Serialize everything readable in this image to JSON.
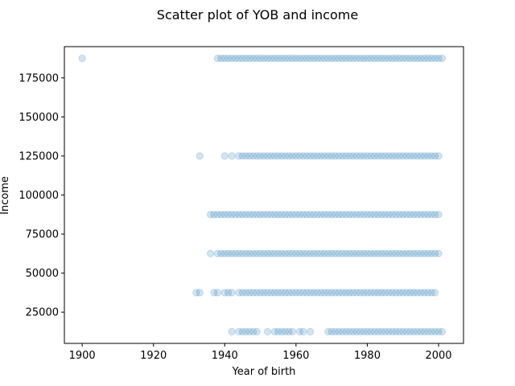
{
  "chart_data": {
    "type": "scatter",
    "title": "Scatter plot of YOB and income",
    "xlabel": "Year of birth",
    "ylabel": "Income",
    "xlim": [
      1895,
      2007
    ],
    "ylim": [
      5000,
      195000
    ],
    "xticks": [
      1900,
      1920,
      1940,
      1960,
      1980,
      2000
    ],
    "yticks": [
      25000,
      50000,
      75000,
      100000,
      125000,
      150000,
      175000
    ],
    "xtick_labels": [
      "1900",
      "1920",
      "1940",
      "1960",
      "1980",
      "2000"
    ],
    "ytick_labels": [
      "25000",
      "50000",
      "75000",
      "100000",
      "125000",
      "150000",
      "175000"
    ],
    "grid": false,
    "color": "#1f77b4",
    "alpha": 0.2,
    "series": [
      {
        "x": [
          1900,
          1938,
          1939,
          1940,
          1941,
          1942,
          1943,
          1944,
          1945,
          1946,
          1947,
          1948,
          1949,
          1950,
          1951,
          1952,
          1953,
          1954,
          1955,
          1956,
          1957,
          1958,
          1959,
          1960,
          1961,
          1962,
          1963,
          1964,
          1965,
          1966,
          1967,
          1968,
          1969,
          1970,
          1971,
          1972,
          1973,
          1974,
          1975,
          1976,
          1977,
          1978,
          1979,
          1980,
          1981,
          1982,
          1983,
          1984,
          1985,
          1986,
          1987,
          1988,
          1989,
          1990,
          1991,
          1992,
          1993,
          1994,
          1995,
          1996,
          1997,
          1998,
          1999,
          2000,
          2001
        ],
        "y": [
          187500,
          187500,
          187500,
          187500,
          187500,
          187500,
          187500,
          187500,
          187500,
          187500,
          187500,
          187500,
          187500,
          187500,
          187500,
          187500,
          187500,
          187500,
          187500,
          187500,
          187500,
          187500,
          187500,
          187500,
          187500,
          187500,
          187500,
          187500,
          187500,
          187500,
          187500,
          187500,
          187500,
          187500,
          187500,
          187500,
          187500,
          187500,
          187500,
          187500,
          187500,
          187500,
          187500,
          187500,
          187500,
          187500,
          187500,
          187500,
          187500,
          187500,
          187500,
          187500,
          187500,
          187500,
          187500,
          187500,
          187500,
          187500,
          187500,
          187500,
          187500,
          187500,
          187500,
          187500,
          187500
        ]
      },
      {
        "x": [
          1933,
          1940,
          1942,
          1944,
          1945,
          1946,
          1947,
          1948,
          1949,
          1950,
          1951,
          1952,
          1953,
          1954,
          1955,
          1956,
          1957,
          1958,
          1959,
          1960,
          1961,
          1962,
          1963,
          1964,
          1965,
          1966,
          1967,
          1968,
          1969,
          1970,
          1971,
          1972,
          1973,
          1974,
          1975,
          1976,
          1977,
          1978,
          1979,
          1980,
          1981,
          1982,
          1983,
          1984,
          1985,
          1986,
          1987,
          1988,
          1989,
          1990,
          1991,
          1992,
          1993,
          1994,
          1995,
          1996,
          1997,
          1998,
          1999,
          2000
        ],
        "y": [
          125000,
          125000,
          125000,
          125000,
          125000,
          125000,
          125000,
          125000,
          125000,
          125000,
          125000,
          125000,
          125000,
          125000,
          125000,
          125000,
          125000,
          125000,
          125000,
          125000,
          125000,
          125000,
          125000,
          125000,
          125000,
          125000,
          125000,
          125000,
          125000,
          125000,
          125000,
          125000,
          125000,
          125000,
          125000,
          125000,
          125000,
          125000,
          125000,
          125000,
          125000,
          125000,
          125000,
          125000,
          125000,
          125000,
          125000,
          125000,
          125000,
          125000,
          125000,
          125000,
          125000,
          125000,
          125000,
          125000,
          125000,
          125000,
          125000,
          125000
        ]
      },
      {
        "x": [
          1936,
          1937,
          1938,
          1939,
          1940,
          1941,
          1942,
          1943,
          1944,
          1945,
          1946,
          1947,
          1948,
          1949,
          1950,
          1951,
          1952,
          1953,
          1954,
          1955,
          1956,
          1957,
          1958,
          1959,
          1960,
          1961,
          1962,
          1963,
          1964,
          1965,
          1966,
          1967,
          1968,
          1969,
          1970,
          1971,
          1972,
          1973,
          1974,
          1975,
          1976,
          1977,
          1978,
          1979,
          1980,
          1981,
          1982,
          1983,
          1984,
          1985,
          1986,
          1987,
          1988,
          1989,
          1990,
          1991,
          1992,
          1993,
          1994,
          1995,
          1996,
          1997,
          1998,
          1999,
          2000
        ],
        "y": [
          87500,
          87500,
          87500,
          87500,
          87500,
          87500,
          87500,
          87500,
          87500,
          87500,
          87500,
          87500,
          87500,
          87500,
          87500,
          87500,
          87500,
          87500,
          87500,
          87500,
          87500,
          87500,
          87500,
          87500,
          87500,
          87500,
          87500,
          87500,
          87500,
          87500,
          87500,
          87500,
          87500,
          87500,
          87500,
          87500,
          87500,
          87500,
          87500,
          87500,
          87500,
          87500,
          87500,
          87500,
          87500,
          87500,
          87500,
          87500,
          87500,
          87500,
          87500,
          87500,
          87500,
          87500,
          87500,
          87500,
          87500,
          87500,
          87500,
          87500,
          87500,
          87500,
          87500,
          87500,
          87500
        ]
      },
      {
        "x": [
          1936,
          1938,
          1939,
          1940,
          1941,
          1942,
          1943,
          1944,
          1945,
          1946,
          1947,
          1948,
          1949,
          1950,
          1951,
          1952,
          1953,
          1954,
          1955,
          1956,
          1957,
          1958,
          1959,
          1960,
          1961,
          1962,
          1963,
          1964,
          1965,
          1966,
          1967,
          1968,
          1969,
          1970,
          1971,
          1972,
          1973,
          1974,
          1975,
          1976,
          1977,
          1978,
          1979,
          1980,
          1981,
          1982,
          1983,
          1984,
          1985,
          1986,
          1987,
          1988,
          1989,
          1990,
          1991,
          1992,
          1993,
          1994,
          1995,
          1996,
          1997,
          1998,
          1999,
          2000
        ],
        "y": [
          62500,
          62500,
          62500,
          62500,
          62500,
          62500,
          62500,
          62500,
          62500,
          62500,
          62500,
          62500,
          62500,
          62500,
          62500,
          62500,
          62500,
          62500,
          62500,
          62500,
          62500,
          62500,
          62500,
          62500,
          62500,
          62500,
          62500,
          62500,
          62500,
          62500,
          62500,
          62500,
          62500,
          62500,
          62500,
          62500,
          62500,
          62500,
          62500,
          62500,
          62500,
          62500,
          62500,
          62500,
          62500,
          62500,
          62500,
          62500,
          62500,
          62500,
          62500,
          62500,
          62500,
          62500,
          62500,
          62500,
          62500,
          62500,
          62500,
          62500,
          62500,
          62500,
          62500,
          62500
        ]
      },
      {
        "x": [
          1932,
          1933,
          1937,
          1938,
          1940,
          1941,
          1942,
          1944,
          1945,
          1946,
          1947,
          1948,
          1949,
          1950,
          1951,
          1952,
          1953,
          1954,
          1955,
          1956,
          1957,
          1958,
          1959,
          1960,
          1961,
          1962,
          1963,
          1964,
          1965,
          1966,
          1967,
          1968,
          1969,
          1970,
          1971,
          1972,
          1973,
          1974,
          1975,
          1976,
          1977,
          1978,
          1979,
          1980,
          1981,
          1982,
          1983,
          1984,
          1985,
          1986,
          1987,
          1988,
          1989,
          1990,
          1991,
          1992,
          1993,
          1994,
          1995,
          1996,
          1997,
          1998,
          1999
        ],
        "y": [
          37500,
          37500,
          37500,
          37500,
          37500,
          37500,
          37500,
          37500,
          37500,
          37500,
          37500,
          37500,
          37500,
          37500,
          37500,
          37500,
          37500,
          37500,
          37500,
          37500,
          37500,
          37500,
          37500,
          37500,
          37500,
          37500,
          37500,
          37500,
          37500,
          37500,
          37500,
          37500,
          37500,
          37500,
          37500,
          37500,
          37500,
          37500,
          37500,
          37500,
          37500,
          37500,
          37500,
          37500,
          37500,
          37500,
          37500,
          37500,
          37500,
          37500,
          37500,
          37500,
          37500,
          37500,
          37500,
          37500,
          37500,
          37500,
          37500,
          37500,
          37500,
          37500,
          37500
        ]
      },
      {
        "x": [
          1942,
          1944,
          1945,
          1946,
          1947,
          1948,
          1949,
          1952,
          1954,
          1955,
          1956,
          1957,
          1958,
          1959,
          1961,
          1962,
          1964,
          1969,
          1970,
          1971,
          1972,
          1973,
          1974,
          1975,
          1976,
          1977,
          1978,
          1979,
          1980,
          1981,
          1982,
          1983,
          1984,
          1985,
          1986,
          1987,
          1988,
          1989,
          1990,
          1991,
          1992,
          1993,
          1994,
          1995,
          1996,
          1997,
          1998,
          1999,
          2000,
          2001
        ],
        "y": [
          12500,
          12500,
          12500,
          12500,
          12500,
          12500,
          12500,
          12500,
          12500,
          12500,
          12500,
          12500,
          12500,
          12500,
          12500,
          12500,
          12500,
          12500,
          12500,
          12500,
          12500,
          12500,
          12500,
          12500,
          12500,
          12500,
          12500,
          12500,
          12500,
          12500,
          12500,
          12500,
          12500,
          12500,
          12500,
          12500,
          12500,
          12500,
          12500,
          12500,
          12500,
          12500,
          12500,
          12500,
          12500,
          12500,
          12500,
          12500,
          12500,
          12500
        ]
      }
    ]
  }
}
